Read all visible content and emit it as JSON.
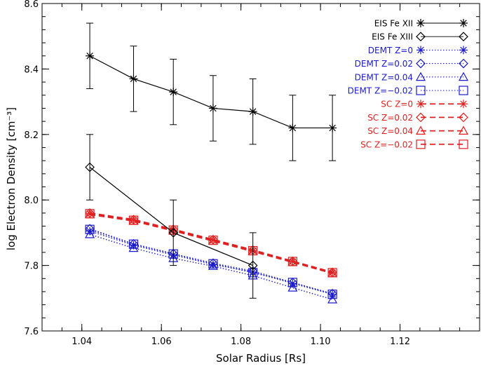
{
  "chart_data": {
    "type": "line",
    "title": "",
    "xlabel": "Solar Radius [Rs]",
    "ylabel": "log Electron Density [cm⁻³]",
    "xlim": [
      1.03,
      1.14
    ],
    "ylim": [
      7.6,
      8.6
    ],
    "xticks": [
      1.04,
      1.06,
      1.08,
      1.1,
      1.12
    ],
    "xtick_labels": [
      "1.04",
      "1.06",
      "1.08",
      "1.10",
      "1.12"
    ],
    "yticks": [
      7.6,
      7.8,
      8.0,
      8.2,
      8.4,
      8.6
    ],
    "ytick_labels": [
      "7.6",
      "7.8",
      "8.0",
      "8.2",
      "8.4",
      "8.6"
    ],
    "legend_position": "top-right",
    "series": [
      {
        "name": "EIS Fe XII",
        "color": "#000000",
        "linestyle": "solid",
        "marker": "asterisk",
        "x": [
          1.042,
          1.053,
          1.063,
          1.073,
          1.083,
          1.093,
          1.103
        ],
        "y": [
          8.44,
          8.37,
          8.33,
          8.28,
          8.27,
          8.22,
          8.22
        ],
        "err": [
          0.1,
          0.1,
          0.1,
          0.1,
          0.1,
          0.1,
          0.1
        ]
      },
      {
        "name": "EIS Fe XIII",
        "color": "#000000",
        "linestyle": "solid",
        "marker": "diamond",
        "x": [
          1.042,
          1.063,
          1.083
        ],
        "y": [
          8.1,
          7.9,
          7.8
        ],
        "err": [
          0.1,
          0.1,
          0.1
        ]
      },
      {
        "name": "DEMT Z=0",
        "color": "#1a1acc",
        "linestyle": "dotted",
        "marker": "asterisk",
        "x": [
          1.042,
          1.053,
          1.063,
          1.073,
          1.083,
          1.093,
          1.103
        ],
        "y": [
          7.905,
          7.862,
          7.832,
          7.803,
          7.78,
          7.745,
          7.712
        ]
      },
      {
        "name": "DEMT Z=0.02",
        "color": "#1a1acc",
        "linestyle": "dotted",
        "marker": "diamond",
        "x": [
          1.042,
          1.053,
          1.063,
          1.073,
          1.083,
          1.093,
          1.103
        ],
        "y": [
          7.912,
          7.866,
          7.836,
          7.807,
          7.783,
          7.748,
          7.714
        ]
      },
      {
        "name": "DEMT Z=0.04",
        "color": "#1a1acc",
        "linestyle": "dotted",
        "marker": "triangle",
        "x": [
          1.042,
          1.053,
          1.063,
          1.073,
          1.083,
          1.093,
          1.103
        ],
        "y": [
          7.895,
          7.853,
          7.822,
          7.798,
          7.769,
          7.732,
          7.696
        ]
      },
      {
        "name": "DEMT Z=−0.02",
        "color": "#1a1acc",
        "linestyle": "dotted",
        "marker": "square",
        "x": [
          1.042,
          1.053,
          1.063,
          1.073,
          1.083,
          1.093,
          1.103
        ],
        "y": [
          7.91,
          7.865,
          7.835,
          7.805,
          7.778,
          7.748,
          7.712
        ]
      },
      {
        "name": "SC Z=0",
        "color": "#e02020",
        "linestyle": "dashed",
        "marker": "asterisk",
        "x": [
          1.042,
          1.053,
          1.063,
          1.073,
          1.083,
          1.093,
          1.103
        ],
        "y": [
          7.958,
          7.938,
          7.908,
          7.877,
          7.845,
          7.812,
          7.778
        ]
      },
      {
        "name": "SC Z=0.02",
        "color": "#e02020",
        "linestyle": "dashed",
        "marker": "diamond",
        "x": [
          1.042,
          1.053,
          1.063,
          1.073,
          1.083,
          1.093,
          1.103
        ],
        "y": [
          7.96,
          7.94,
          7.91,
          7.879,
          7.847,
          7.813,
          7.779
        ]
      },
      {
        "name": "SC Z=0.04",
        "color": "#e02020",
        "linestyle": "dashed",
        "marker": "triangle",
        "x": [
          1.042,
          1.053,
          1.063,
          1.073,
          1.083,
          1.093,
          1.103
        ],
        "y": [
          7.956,
          7.936,
          7.906,
          7.875,
          7.843,
          7.81,
          7.776
        ]
      },
      {
        "name": "SC Z=−0.02",
        "color": "#e02020",
        "linestyle": "dashed",
        "marker": "square",
        "x": [
          1.042,
          1.053,
          1.063,
          1.073,
          1.083,
          1.093,
          1.103
        ],
        "y": [
          7.958,
          7.938,
          7.908,
          7.877,
          7.845,
          7.812,
          7.778
        ]
      }
    ]
  }
}
